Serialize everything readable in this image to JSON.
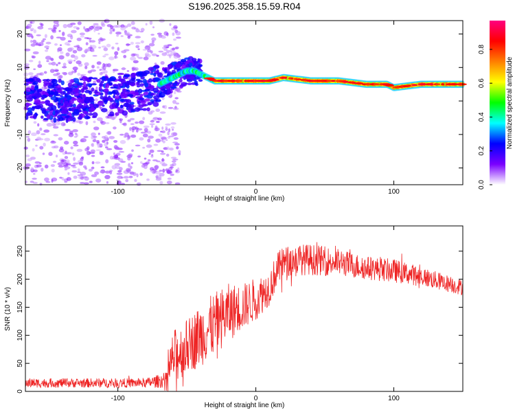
{
  "title": "S196.2025.358.15.59.R04",
  "chart_data": [
    {
      "type": "heatmap",
      "title": "S196.2025.358.15.59.R04",
      "xlabel": "Height of straight line (km)",
      "ylabel": "Frequency (Hz)",
      "xlim": [
        -167,
        150
      ],
      "ylim": [
        -25,
        24
      ],
      "x_ticks": [
        -100,
        0,
        100
      ],
      "y_ticks": [
        -20,
        -10,
        0,
        10,
        20
      ],
      "colorbar": {
        "label": "Normalized spectral amplitude",
        "range": [
          0,
          0.97
        ],
        "ticks": [
          0.0,
          0.2,
          0.4,
          0.6,
          0.8
        ],
        "colormap": [
          "#ffffff",
          "#7a00ff",
          "#0000ff",
          "#00ffff",
          "#00ff00",
          "#ffff00",
          "#ff7f00",
          "#ff0000",
          "#ff0080"
        ]
      },
      "ridge": {
        "x": [
          -167,
          -140,
          -120,
          -100,
          -80,
          -70,
          -60,
          -50,
          -45,
          -40,
          -30,
          -20,
          -10,
          0,
          10,
          20,
          40,
          60,
          80,
          95,
          100,
          120,
          150
        ],
        "freq": [
          1,
          0,
          1,
          2,
          3,
          5,
          7,
          9,
          9,
          8,
          6,
          6,
          6,
          6,
          6,
          7,
          6,
          6,
          5,
          5,
          4,
          5,
          5
        ]
      }
    },
    {
      "type": "line",
      "xlabel": "Height of straight line (km)",
      "ylabel": "SNR (10 * v/v)",
      "xlim": [
        -167,
        150
      ],
      "ylim": [
        0,
        295
      ],
      "x_ticks": [
        -100,
        0,
        100
      ],
      "y_ticks": [
        0,
        50,
        100,
        150,
        200,
        250
      ],
      "series": [
        {
          "name": "SNR",
          "color": "#ee2222",
          "envelope_x": [
            -167,
            -80,
            -65,
            -60,
            -50,
            -40,
            -30,
            -20,
            -10,
            0,
            10,
            15,
            20,
            30,
            40,
            60,
            80,
            100,
            120,
            150
          ],
          "envelope_y": [
            15,
            15,
            20,
            60,
            80,
            100,
            120,
            140,
            150,
            165,
            185,
            215,
            230,
            235,
            235,
            230,
            220,
            215,
            205,
            185
          ],
          "noise_amplitude": [
            12,
            12,
            20,
            70,
            70,
            80,
            80,
            75,
            60,
            55,
            45,
            45,
            40,
            40,
            40,
            35,
            30,
            30,
            25,
            20
          ]
        }
      ]
    }
  ]
}
